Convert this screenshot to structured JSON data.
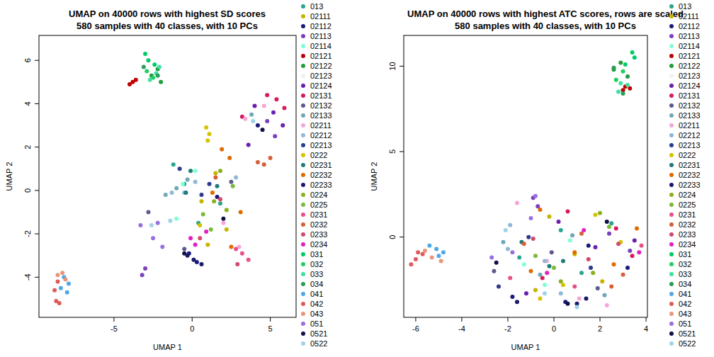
{
  "chart_data": [
    {
      "type": "scatter",
      "title": "UMAP on 40000 rows with highest SD scores",
      "subtitle": "580 samples with 40 classes, with 10 PCs",
      "x_label": "UMAP 1",
      "y_label": "UMAP 2",
      "xlim": [
        -9.8,
        6.65
      ],
      "ylim": [
        -5.85,
        7.15
      ],
      "xticks": [
        -5,
        0,
        5
      ],
      "yticks": [
        -4,
        -2,
        0,
        2,
        4,
        6
      ],
      "legend": "right",
      "marker": "circle",
      "series": [
        {
          "name": "013",
          "color": "#2ca58d",
          "x": [
            -1.2,
            -0.5,
            0.4,
            1.8
          ],
          "values": [
            1.2,
            0.3,
            -1.5,
            -0.6
          ]
        },
        {
          "name": "02111",
          "color": "#c8b400",
          "x": [
            0.6,
            1.5,
            2.2,
            1.0
          ],
          "values": [
            -0.5,
            0.8,
            -1.8,
            -2.5
          ]
        },
        {
          "name": "02112",
          "color": "#1a1a7a",
          "x": [
            -0.2,
            0.3,
            1.6,
            4.2
          ],
          "values": [
            -2.9,
            -3.3,
            -0.3,
            3.0
          ]
        },
        {
          "name": "02113",
          "color": "#7b3fbf",
          "x": [
            -3.2,
            -3.0,
            4.8,
            5.3
          ],
          "values": [
            -3.9,
            -3.6,
            3.2,
            2.5
          ]
        },
        {
          "name": "02114",
          "color": "#7fffd4",
          "x": [
            -1.0,
            0.2,
            -0.6
          ],
          "values": [
            -1.3,
            0.9,
            0.3
          ]
        },
        {
          "name": "02121",
          "color": "#c00000",
          "x": [
            -4.0,
            -3.8,
            -3.6
          ],
          "values": [
            4.9,
            5.0,
            5.1
          ]
        },
        {
          "name": "02122",
          "color": "#1e9e3c",
          "x": [
            -2.6,
            -2.2,
            -2.0
          ],
          "values": [
            5.3,
            5.6,
            5.0
          ]
        },
        {
          "name": "02123",
          "color": "#f0f0f0",
          "x": [],
          "values": []
        },
        {
          "name": "02124",
          "color": "#6a1fb0",
          "x": [
            4.0,
            5.2,
            5.8,
            3.6
          ],
          "values": [
            3.9,
            3.6,
            3.0,
            2.1
          ]
        },
        {
          "name": "02131",
          "color": "#d81b60",
          "x": [
            4.8,
            5.4,
            5.9,
            3.2
          ],
          "values": [
            4.4,
            4.2,
            3.8,
            3.4
          ]
        },
        {
          "name": "02132",
          "color": "#5b5b8f",
          "x": [
            -2.8,
            -0.5,
            2.5
          ],
          "values": [
            -1.0,
            -2.7,
            0.4
          ]
        },
        {
          "name": "02133",
          "color": "#6fa8b8",
          "x": [
            -1.7,
            -1.0,
            -0.3,
            3.8
          ],
          "values": [
            -0.2,
            0.1,
            0.5,
            3.5
          ]
        },
        {
          "name": "02211",
          "color": "#f4a6d7",
          "x": [
            3.4,
            4.6,
            3.0,
            2.0
          ],
          "values": [
            3.3,
            3.9,
            -2.6,
            -1.5
          ]
        },
        {
          "name": "02212",
          "color": "#8fb8d8",
          "x": [
            -0.5,
            0.2,
            -1.3,
            2.8
          ],
          "values": [
            -0.1,
            0.4,
            -0.1,
            0.6
          ]
        },
        {
          "name": "02213",
          "color": "#2f3a8f",
          "x": [
            0.6,
            1.1,
            -0.8
          ],
          "values": [
            -0.2,
            0.3,
            1.0
          ]
        },
        {
          "name": "0222",
          "color": "#d4c400",
          "x": [
            0.9,
            1.1,
            1.0,
            0.5
          ],
          "values": [
            2.9,
            2.6,
            2.3,
            -1.6
          ]
        },
        {
          "name": "02231",
          "color": "#1f7a7a",
          "x": [
            -0.1,
            -0.4,
            1.6
          ],
          "values": [
            0.9,
            -0.1,
            0.2
          ]
        },
        {
          "name": "02232",
          "color": "#e06c00",
          "x": [
            1.9,
            2.4,
            1.3,
            3.1,
            2.5
          ],
          "values": [
            1.9,
            1.5,
            -0.1,
            -1.0,
            -2.6
          ]
        },
        {
          "name": "02233",
          "color": "#1a1a6b",
          "x": [
            0.1,
            0.6,
            -0.3
          ],
          "values": [
            -3.2,
            -3.4,
            -3.0
          ]
        },
        {
          "name": "0224",
          "color": "#8ab020",
          "x": [
            1.4,
            2.2,
            1.8
          ],
          "values": [
            -0.5,
            -0.9,
            0.9
          ]
        },
        {
          "name": "0225",
          "color": "#7cba3a",
          "x": [
            0.7,
            2.6,
            1.2
          ],
          "values": [
            -1.1,
            0.2,
            -1.8
          ]
        },
        {
          "name": "0231",
          "color": "#e8508a",
          "x": [
            3.2,
            3.6,
            2.8
          ],
          "values": [
            -2.9,
            -3.2,
            -2.7
          ]
        },
        {
          "name": "0232",
          "color": "#d5603a",
          "x": [
            4.2,
            4.6,
            5.0,
            1.5
          ],
          "values": [
            1.3,
            1.2,
            1.5,
            0.6
          ]
        },
        {
          "name": "0233",
          "color": "#d14b6b",
          "x": [
            0.5,
            1.8,
            2.9
          ],
          "values": [
            -2.2,
            -0.4,
            -3.4
          ]
        },
        {
          "name": "0234",
          "color": "#e020c0",
          "x": [
            -0.1,
            0.9,
            0.2
          ],
          "values": [
            -2.2,
            -1.9,
            -2.5
          ]
        },
        {
          "name": "031",
          "color": "#00cc66",
          "x": [
            -3.0,
            -2.8,
            -2.4
          ],
          "values": [
            6.3,
            6.0,
            5.8
          ]
        },
        {
          "name": "032",
          "color": "#20d060",
          "x": [
            -2.9,
            -2.5
          ],
          "values": [
            5.5,
            5.2
          ]
        },
        {
          "name": "033",
          "color": "#40e0a0",
          "x": [
            -2.7,
            -2.3,
            -2.1
          ],
          "values": [
            5.1,
            5.4,
            5.7
          ]
        },
        {
          "name": "034",
          "color": "#2a9d5a",
          "x": [
            -3.1,
            -2.2
          ],
          "values": [
            5.7,
            5.3
          ]
        },
        {
          "name": "041",
          "color": "#4ea8e8",
          "x": [
            -8.2,
            -7.9,
            -8.0,
            -8.4
          ],
          "values": [
            -4.0,
            -4.3,
            -4.7,
            -4.5
          ]
        },
        {
          "name": "042",
          "color": "#e05a5a",
          "x": [
            -8.8,
            -8.7,
            -8.5,
            -8.6
          ],
          "values": [
            -4.6,
            -5.1,
            -5.2,
            -4.2
          ]
        },
        {
          "name": "043",
          "color": "#e8967a",
          "x": [
            -8.6,
            -8.3,
            -8.1
          ],
          "values": [
            -3.9,
            -3.8,
            -4.1
          ]
        },
        {
          "name": "051",
          "color": "#9b6fe0",
          "x": [
            -3.3,
            -2.5,
            -2.2,
            -1.9
          ],
          "values": [
            -1.6,
            -2.2,
            -1.5,
            -2.6
          ]
        },
        {
          "name": "0521",
          "color": "#10104a",
          "x": [
            -0.5,
            2.0,
            4.5
          ],
          "values": [
            -2.9,
            -1.3,
            2.8
          ]
        },
        {
          "name": "0522",
          "color": "#9fd3e8",
          "x": [
            -1.4,
            -2.6,
            3.9
          ],
          "values": [
            -1.4,
            -1.6,
            3.2
          ]
        }
      ]
    },
    {
      "type": "scatter",
      "title": "UMAP on 40000 rows with highest ATC scores, rows are scaled",
      "subtitle": "580 samples with 40 classes, with 10 PCs",
      "x_label": "UMAP 1",
      "y_label": "UMAP 2",
      "xlim": [
        -6.52,
        4.06
      ],
      "ylim": [
        -4.7,
        11.8
      ],
      "xticks": [
        -6,
        -4,
        -2,
        0,
        2,
        4
      ],
      "yticks": [
        0,
        5,
        10
      ],
      "legend": "right",
      "marker": "circle",
      "series": [
        {
          "name": "013",
          "color": "#2ca58d",
          "x": [
            -1.5,
            0.3,
            1.2,
            2.5
          ],
          "values": [
            -1.2,
            0.4,
            -2.1,
            0.8
          ]
        },
        {
          "name": "02111",
          "color": "#c8b400",
          "x": [
            -0.8,
            0.9,
            2.1,
            -0.2
          ],
          "values": [
            -3.1,
            -1.0,
            -2.6,
            1.2
          ]
        },
        {
          "name": "02112",
          "color": "#1a1a7a",
          "x": [
            -1.8,
            0.5,
            1.5,
            3.2
          ],
          "values": [
            -3.5,
            -3.8,
            -0.5,
            -1.8
          ]
        },
        {
          "name": "02113",
          "color": "#7b3fbf",
          "x": [
            -0.9,
            -0.7,
            2.4,
            3.3
          ],
          "values": [
            2.3,
            1.8,
            0.2,
            -0.8
          ]
        },
        {
          "name": "02114",
          "color": "#7fffd4",
          "x": [
            -1.3,
            0.7,
            -0.4
          ],
          "values": [
            -1.6,
            -0.2,
            -2.8
          ]
        },
        {
          "name": "02121",
          "color": "#c00000",
          "x": [
            3.0,
            3.1,
            3.3
          ],
          "values": [
            8.6,
            8.8,
            8.7
          ]
        },
        {
          "name": "02122",
          "color": "#1e9e3c",
          "x": [
            2.6,
            2.9,
            3.2
          ],
          "values": [
            9.8,
            10.2,
            9.4
          ]
        },
        {
          "name": "02123",
          "color": "#f0f0f0",
          "x": [],
          "values": []
        },
        {
          "name": "02124",
          "color": "#6a1fb0",
          "x": [
            0.2,
            1.8,
            3.5,
            -1.2
          ],
          "values": [
            0.9,
            -0.6,
            -0.2,
            -3.3
          ]
        },
        {
          "name": "02131",
          "color": "#d81b60",
          "x": [
            0.6,
            2.7,
            3.4,
            -0.5
          ],
          "values": [
            1.5,
            0.5,
            -1.1,
            -2.4
          ]
        },
        {
          "name": "02132",
          "color": "#5b5b8f",
          "x": [
            -2.6,
            -0.1,
            1.9
          ],
          "values": [
            -2.0,
            -0.9,
            -3.0
          ]
        },
        {
          "name": "02133",
          "color": "#6fa8b8",
          "x": [
            -2.2,
            -0.6,
            0.8,
            2.2
          ],
          "values": [
            -0.3,
            -2.2,
            0.1,
            -3.4
          ]
        },
        {
          "name": "02211",
          "color": "#f4a6d7",
          "x": [
            -1.6,
            -0.3,
            1.1,
            2.3
          ],
          "values": [
            2.0,
            -1.4,
            -3.6,
            -4.0
          ]
        },
        {
          "name": "02212",
          "color": "#8fb8d8",
          "x": [
            -0.4,
            -2.0,
            -1.9,
            0.3
          ],
          "values": [
            -1.4,
            -0.7,
            0.7,
            -3.3
          ]
        },
        {
          "name": "02213",
          "color": "#2f3a8f",
          "x": [
            -1.1,
            1.6,
            -2.4
          ],
          "values": [
            0.0,
            -1.8,
            -2.9
          ]
        },
        {
          "name": "0222",
          "color": "#d4c400",
          "x": [
            -0.6,
            0.4,
            1.8,
            2.9
          ],
          "values": [
            -3.6,
            -2.8,
            1.3,
            -0.3
          ]
        },
        {
          "name": "02231",
          "color": "#1f7a7a",
          "x": [
            -0.2,
            0.4,
            -1.4
          ],
          "values": [
            -1.7,
            -1.4,
            -0.3
          ]
        },
        {
          "name": "02232",
          "color": "#e06c00",
          "x": [
            -0.6,
            0.9,
            2.6,
            3.6,
            -1.0
          ],
          "values": [
            1.6,
            -0.9,
            -1.6,
            0.5,
            -2.0
          ]
        },
        {
          "name": "02233",
          "color": "#1a1a6b",
          "x": [
            1.0,
            1.4,
            -1.6
          ],
          "values": [
            -3.9,
            -3.6,
            -3.8
          ]
        },
        {
          "name": "0224",
          "color": "#8ab020",
          "x": [
            0.3,
            1.7,
            2.0
          ],
          "values": [
            -2.6,
            -2.1,
            1.4
          ]
        },
        {
          "name": "0225",
          "color": "#7cba3a",
          "x": [
            0.0,
            2.4,
            -0.8
          ],
          "values": [
            -1.8,
            0.6,
            -1.1
          ]
        },
        {
          "name": "0231",
          "color": "#e8508a",
          "x": [
            3.8,
            -1.9,
            0.9
          ],
          "values": [
            -0.5,
            -2.4,
            -2.9
          ]
        },
        {
          "name": "0232",
          "color": "#d5603a",
          "x": [
            1.2,
            2.5,
            -1.3,
            3.0
          ],
          "values": [
            0.2,
            -2.9,
            -0.4,
            -2.2
          ]
        },
        {
          "name": "0233",
          "color": "#d14b6b",
          "x": [
            1.5,
            -0.9,
            2.8
          ],
          "values": [
            -1.3,
            -0.1,
            -0.4
          ]
        },
        {
          "name": "0234",
          "color": "#e020c0",
          "x": [
            1.3,
            3.7,
            -0.3
          ],
          "values": [
            0.4,
            -0.9,
            -2.1
          ]
        },
        {
          "name": "031",
          "color": "#00cc66",
          "x": [
            3.4,
            3.5,
            3.1
          ],
          "values": [
            10.8,
            10.5,
            10.1
          ]
        },
        {
          "name": "032",
          "color": "#20d060",
          "x": [
            2.7,
            3.0
          ],
          "values": [
            9.2,
            9.7
          ]
        },
        {
          "name": "033",
          "color": "#40e0a0",
          "x": [
            2.8,
            3.2,
            2.9
          ],
          "values": [
            8.5,
            8.9,
            9.0
          ]
        },
        {
          "name": "034",
          "color": "#2a9d5a",
          "x": [
            2.6,
            3.0
          ],
          "values": [
            9.9,
            8.4
          ]
        },
        {
          "name": "041",
          "color": "#4ea8e8",
          "x": [
            -5.1,
            -4.8,
            -5.4,
            -5.0
          ],
          "values": [
            -0.7,
            -0.9,
            -0.5,
            -1.1
          ]
        },
        {
          "name": "042",
          "color": "#e05a5a",
          "x": [
            -6.2,
            -6.0,
            -5.7,
            -5.9
          ],
          "values": [
            -1.6,
            -1.3,
            -1.0,
            -0.9
          ]
        },
        {
          "name": "043",
          "color": "#e8967a",
          "x": [
            -5.6,
            -5.3,
            -4.9
          ],
          "values": [
            -0.8,
            -1.2,
            -1.4
          ]
        },
        {
          "name": "051",
          "color": "#9b6fe0",
          "x": [
            -2.7,
            -0.8,
            -1.0,
            -1.8
          ],
          "values": [
            -1.2,
            2.4,
            1.1,
            -0.9
          ]
        },
        {
          "name": "0521",
          "color": "#10104a",
          "x": [
            -2.5,
            0.6,
            2.3
          ],
          "values": [
            -1.5,
            -3.9,
            0.9
          ]
        },
        {
          "name": "0522",
          "color": "#9fd3e8",
          "x": [
            -2.1,
            -0.4,
            1.0
          ],
          "values": [
            0.4,
            -3.3,
            -4.1
          ]
        }
      ]
    }
  ]
}
